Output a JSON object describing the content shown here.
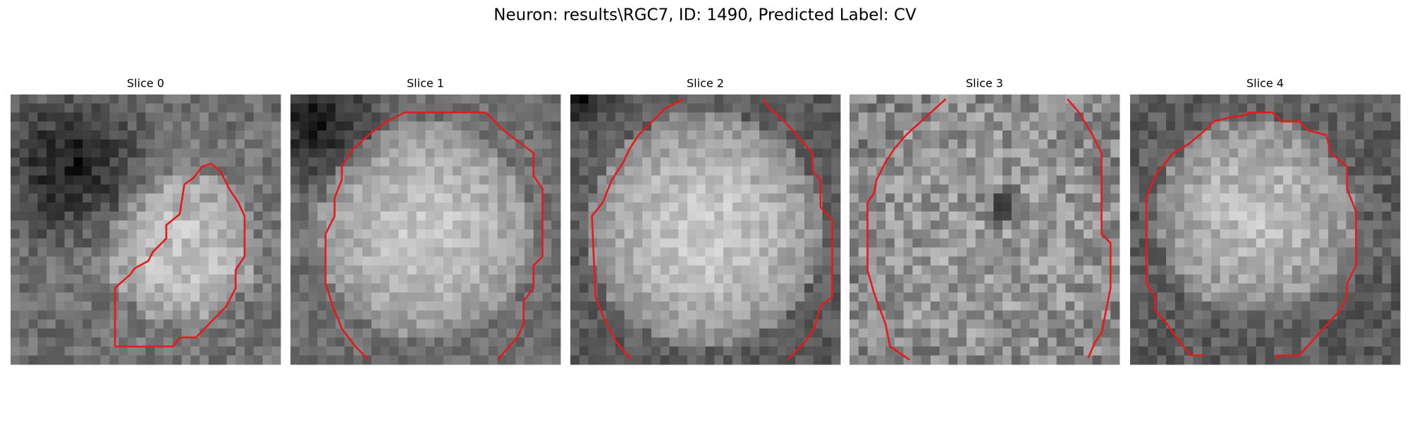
{
  "header": {
    "title": "Neuron: results\\RGC7, ID: 1490, Predicted Label: CV"
  },
  "panels": [
    {
      "title": "Slice 0"
    },
    {
      "title": "Slice 1"
    },
    {
      "title": "Slice 2"
    },
    {
      "title": "Slice 3"
    },
    {
      "title": "Slice 4"
    }
  ]
}
